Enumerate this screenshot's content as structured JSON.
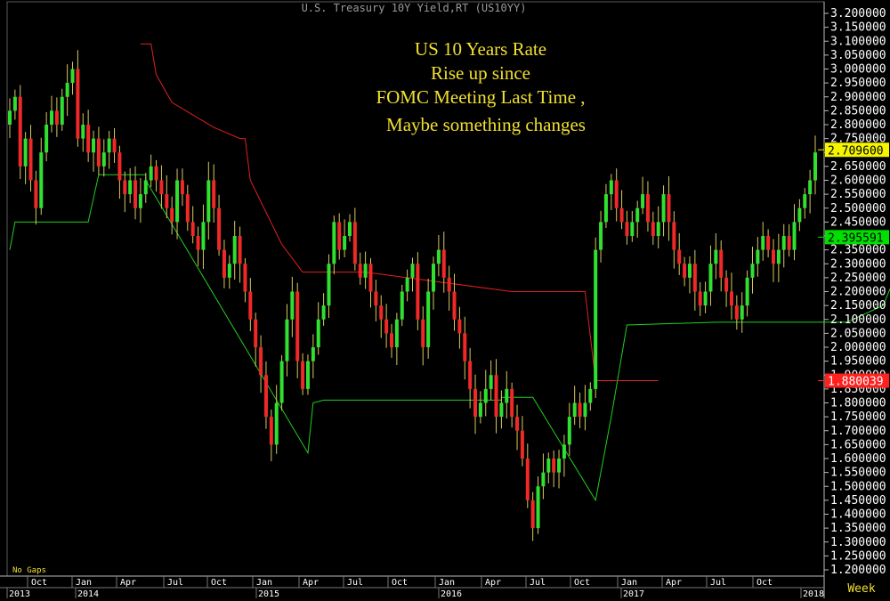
{
  "chart_data": {
    "type": "candlestick",
    "title": "U.S. Treasury 10Y Yield,RT (US10YY)",
    "annotation_lines": [
      "US 10 Years Rate",
      "Rise up since",
      "FOMC Meeting Last Time ,",
      "Maybe something changes"
    ],
    "ylim": [
      1.2,
      3.2
    ],
    "yticks": [
      "3.200000",
      "3.150000",
      "3.100000",
      "3.050000",
      "3.000000",
      "2.950000",
      "2.900000",
      "2.850000",
      "2.800000",
      "2.750000",
      "2.700000",
      "2.650000",
      "2.600000",
      "2.550000",
      "2.500000",
      "2.450000",
      "2.400000",
      "2.350000",
      "2.300000",
      "2.250000",
      "2.200000",
      "2.150000",
      "2.100000",
      "2.050000",
      "2.000000",
      "1.950000",
      "1.900000",
      "1.850000",
      "1.800000",
      "1.750000",
      "1.700000",
      "1.650000",
      "1.600000",
      "1.550000",
      "1.500000",
      "1.450000",
      "1.400000",
      "1.350000",
      "1.300000",
      "1.250000",
      "1.200000"
    ],
    "x_month_labels": [
      "Oct",
      "Jan",
      "Apr",
      "Jul",
      "Oct",
      "Jan",
      "Apr",
      "Jul",
      "Oct",
      "Jan",
      "Apr",
      "Jul",
      "Oct",
      "Jan",
      "Apr",
      "Jul",
      "Oct"
    ],
    "x_year_labels": [
      "2013",
      "2014",
      "2015",
      "2016",
      "2017",
      "2018"
    ],
    "interval_label": "Week",
    "gaps_label": "No Gaps",
    "badges": [
      {
        "value": "2.709600",
        "level": 2.7096,
        "bg": "#f5f500",
        "fg": "#000000"
      },
      {
        "value": "2.395591",
        "level": 2.395591,
        "bg": "#00e000",
        "fg": "#000000"
      },
      {
        "value": "1.880039",
        "level": 1.880039,
        "bg": "#ff2020",
        "fg": "#ffffff"
      }
    ],
    "closes": [
      2.85,
      2.9,
      2.65,
      2.75,
      2.6,
      2.5,
      2.7,
      2.8,
      2.85,
      2.8,
      2.9,
      2.95,
      3.0,
      2.75,
      2.8,
      2.7,
      2.75,
      2.65,
      2.7,
      2.75,
      2.7,
      2.6,
      2.55,
      2.6,
      2.5,
      2.55,
      2.6,
      2.65,
      2.6,
      2.55,
      2.5,
      2.45,
      2.6,
      2.55,
      2.45,
      2.4,
      2.35,
      2.45,
      2.6,
      2.5,
      2.35,
      2.25,
      2.3,
      2.4,
      2.3,
      2.2,
      2.1,
      2.0,
      1.9,
      1.75,
      1.65,
      1.8,
      1.95,
      2.1,
      2.2,
      1.95,
      1.85,
      1.95,
      2.0,
      2.1,
      2.15,
      2.3,
      2.45,
      2.35,
      2.4,
      2.45,
      2.3,
      2.25,
      2.3,
      2.2,
      2.15,
      2.1,
      2.05,
      2.0,
      2.1,
      2.2,
      2.25,
      2.3,
      2.1,
      2.0,
      2.2,
      2.3,
      2.35,
      2.25,
      2.2,
      2.1,
      2.05,
      1.95,
      1.85,
      1.75,
      1.8,
      1.85,
      1.9,
      1.75,
      1.8,
      1.85,
      1.75,
      1.7,
      1.6,
      1.45,
      1.35,
      1.5,
      1.55,
      1.6,
      1.55,
      1.6,
      1.65,
      1.75,
      1.8,
      1.75,
      1.8,
      1.85,
      2.35,
      2.45,
      2.55,
      2.6,
      2.5,
      2.45,
      2.4,
      2.45,
      2.5,
      2.55,
      2.45,
      2.4,
      2.45,
      2.55,
      2.45,
      2.35,
      2.3,
      2.25,
      2.3,
      2.2,
      2.15,
      2.2,
      2.3,
      2.35,
      2.25,
      2.2,
      2.15,
      2.1,
      2.15,
      2.25,
      2.3,
      2.35,
      2.4,
      2.35,
      2.3,
      2.35,
      2.4,
      2.35,
      2.45,
      2.5,
      2.55,
      2.6,
      2.7
    ],
    "support": [
      {
        "i": 0,
        "v": 2.35
      },
      {
        "i": 1,
        "v": 2.45
      },
      {
        "i": 15,
        "v": 2.45
      },
      {
        "i": 17,
        "v": 2.62
      },
      {
        "i": 26,
        "v": 2.62
      },
      {
        "i": 26,
        "v": 2.6
      },
      {
        "i": 57,
        "v": 1.62
      },
      {
        "i": 58,
        "v": 1.8
      },
      {
        "i": 60,
        "v": 1.81
      },
      {
        "i": 94,
        "v": 1.81
      },
      {
        "i": 94,
        "v": 1.82
      },
      {
        "i": 100,
        "v": 1.82
      },
      {
        "i": 112,
        "v": 1.45
      },
      {
        "i": 115,
        "v": 1.75
      },
      {
        "i": 118,
        "v": 2.08
      },
      {
        "i": 135,
        "v": 2.09
      },
      {
        "i": 160,
        "v": 2.09
      },
      {
        "i": 167,
        "v": 2.15
      },
      {
        "i": 172,
        "v": 2.38
      }
    ],
    "resistance": [
      {
        "i": 25,
        "v": 3.09
      },
      {
        "i": 27,
        "v": 3.09
      },
      {
        "i": 28,
        "v": 2.98
      },
      {
        "i": 31,
        "v": 2.88
      },
      {
        "i": 39,
        "v": 2.79
      },
      {
        "i": 44,
        "v": 2.75
      },
      {
        "i": 45,
        "v": 2.75
      },
      {
        "i": 46,
        "v": 2.6
      },
      {
        "i": 52,
        "v": 2.37
      },
      {
        "i": 56,
        "v": 2.27
      },
      {
        "i": 68,
        "v": 2.27
      },
      {
        "i": 96,
        "v": 2.2
      },
      {
        "i": 110,
        "v": 2.2
      },
      {
        "i": 112,
        "v": 1.88
      },
      {
        "i": 124,
        "v": 1.88
      }
    ]
  }
}
